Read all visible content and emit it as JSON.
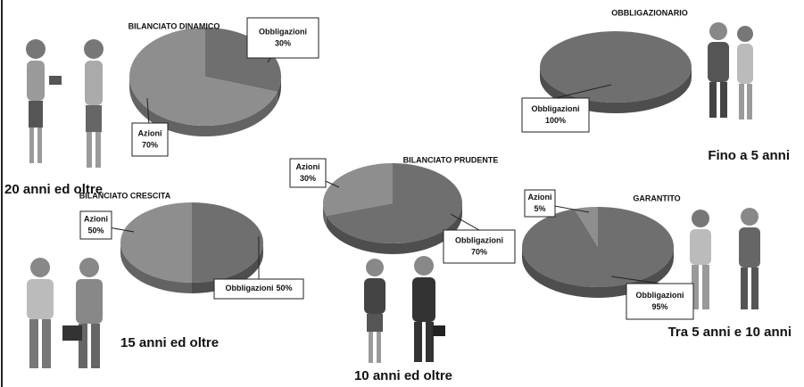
{
  "chart_data": [
    {
      "type": "pie",
      "title": "BILANCIATO DINAMICO",
      "annotation": "20 anni ed oltre",
      "categories": [
        "Obbligazioni",
        "Azioni"
      ],
      "values": [
        30,
        70
      ],
      "value_labels": [
        "30%",
        "70%"
      ],
      "colors": [
        "#6f6f6f",
        "#8e8e8e"
      ]
    },
    {
      "type": "pie",
      "title": "OBBLIGAZIONARIO",
      "annotation": "Fino a 5 anni",
      "categories": [
        "Obbligazioni"
      ],
      "values": [
        100
      ],
      "value_labels": [
        "100%"
      ],
      "colors": [
        "#6f6f6f"
      ]
    },
    {
      "type": "pie",
      "title": "BILANCIATO PRUDENTE",
      "annotation": "10 anni ed oltre",
      "categories": [
        "Obbligazioni",
        "Azioni"
      ],
      "values": [
        70,
        30
      ],
      "value_labels": [
        "70%",
        "30%"
      ],
      "colors": [
        "#6f6f6f",
        "#8e8e8e"
      ]
    },
    {
      "type": "pie",
      "title": "BILANCIATO CRESCITA",
      "annotation": "15 anni ed oltre",
      "categories": [
        "Obbligazioni",
        "Azioni"
      ],
      "values": [
        50,
        50
      ],
      "value_labels": [
        "50%",
        "50%"
      ],
      "colors": [
        "#6f6f6f",
        "#8e8e8e"
      ]
    },
    {
      "type": "pie",
      "title": "GARANTITO",
      "annotation": "Tra 5 anni e 10 anni",
      "categories": [
        "Obbligazioni",
        "Azioni"
      ],
      "values": [
        95,
        5
      ],
      "value_labels": [
        "95%",
        "5%"
      ],
      "colors": [
        "#6f6f6f",
        "#8e8e8e"
      ]
    }
  ]
}
